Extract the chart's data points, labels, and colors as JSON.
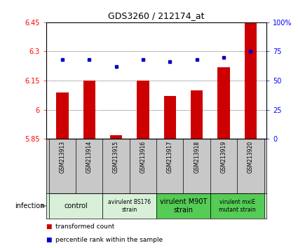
{
  "title": "GDS3260 / 212174_at",
  "samples": [
    "GSM213913",
    "GSM213914",
    "GSM213915",
    "GSM213916",
    "GSM213917",
    "GSM213918",
    "GSM213919",
    "GSM213920"
  ],
  "bar_values": [
    6.09,
    6.15,
    5.87,
    6.15,
    6.07,
    6.1,
    6.22,
    6.45
  ],
  "percentile_values": [
    68,
    68,
    62,
    68,
    66,
    68,
    70,
    75
  ],
  "ylim_left": [
    5.85,
    6.45
  ],
  "ylim_right": [
    0,
    100
  ],
  "yticks_left": [
    5.85,
    6.0,
    6.15,
    6.3,
    6.45
  ],
  "yticks_right": [
    0,
    25,
    50,
    75,
    100
  ],
  "ytick_labels_left": [
    "5.85",
    "6",
    "6.15",
    "6.3",
    "6.45"
  ],
  "ytick_labels_right": [
    "0",
    "25",
    "50",
    "75",
    "100%"
  ],
  "bar_color": "#cc0000",
  "dot_color": "#0000cc",
  "groups": [
    {
      "label": "control",
      "indices": [
        0,
        1
      ],
      "color": "#d8f0d8",
      "fontsize": 7
    },
    {
      "label": "avirulent BS176\nstrain",
      "indices": [
        2,
        3
      ],
      "color": "#d8f0d8",
      "fontsize": 5.5
    },
    {
      "label": "virulent M90T\nstrain",
      "indices": [
        4,
        5
      ],
      "color": "#55cc55",
      "fontsize": 7
    },
    {
      "label": "virulent mxiE\nmutant strain",
      "indices": [
        6,
        7
      ],
      "color": "#55cc55",
      "fontsize": 5.5
    }
  ],
  "infection_label": "infection",
  "legend_items": [
    {
      "label": "transformed count",
      "color": "#cc0000"
    },
    {
      "label": "percentile rank within the sample",
      "color": "#0000cc"
    }
  ],
  "sample_bg": "#c8c8c8",
  "bg_color": "#ffffff",
  "plot_bg": "#ffffff",
  "bar_baseline": 5.85,
  "bar_width": 0.45
}
